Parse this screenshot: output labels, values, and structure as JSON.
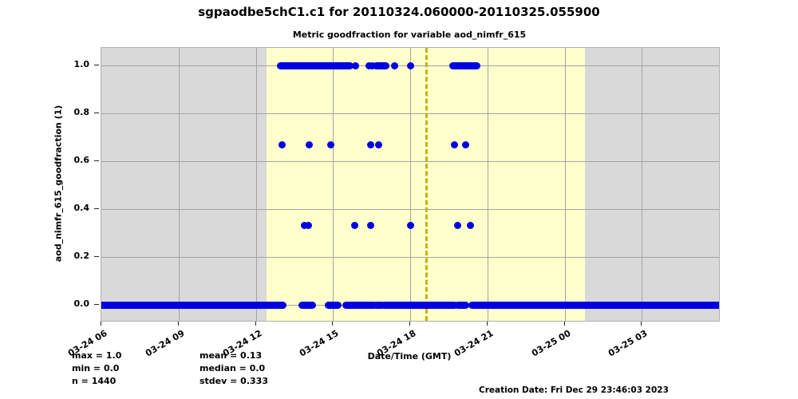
{
  "title": "sgpaodbe5chC1.c1 for 20110324.060000-20110325.055900",
  "subtitle": "Metric goodfraction for variable aod_nimfr_615",
  "x_axis": {
    "label": "Date/Time (GMT)",
    "ticks": [
      {
        "label": "03-24 06",
        "hour": 0
      },
      {
        "label": "03-24 09",
        "hour": 3
      },
      {
        "label": "03-24 12",
        "hour": 6
      },
      {
        "label": "03-24 15",
        "hour": 9
      },
      {
        "label": "03-24 18",
        "hour": 12
      },
      {
        "label": "03-24 21",
        "hour": 15
      },
      {
        "label": "03-25 00",
        "hour": 18
      },
      {
        "label": "03-25 03",
        "hour": 21
      }
    ]
  },
  "y_axis": {
    "label": "aod_nimfr_615_goodfraction (1)",
    "ticks": [
      {
        "label": "1.0",
        "value": 1.0
      },
      {
        "label": "0.8",
        "value": 0.8
      },
      {
        "label": "0.6",
        "value": 0.6
      },
      {
        "label": "0.4",
        "value": 0.4
      },
      {
        "label": "0.2",
        "value": 0.2
      },
      {
        "label": "0.0",
        "value": 0.0
      }
    ]
  },
  "stats": {
    "max": "max = 1.0",
    "min": "min = 0.0",
    "n": "n = 1440",
    "mean": "mean = 0.13",
    "median": "median = 0.0",
    "stdev": "stdev = 0.333"
  },
  "footer": "Creation Date: Fri Dec 29 23:46:03 2023",
  "colors": {
    "plot_background": "#d9d9d9",
    "daylight_band": "#ffffcc",
    "gridline": "#a3a3a3",
    "marker": "#0000e0",
    "noon_line": "#c3b400",
    "plot_border": "#b0b0b0"
  },
  "chart_data": {
    "type": "scatter",
    "title": "Metric goodfraction for variable aod_nimfr_615",
    "xlabel": "Date/Time (GMT)",
    "ylabel": "aod_nimfr_615_goodfraction (1)",
    "x_unit": "hours since 2011-03-24 06:00 GMT",
    "xlim": [
      0,
      24
    ],
    "ylim": [
      -0.07,
      1.07
    ],
    "grid": true,
    "legend": false,
    "daylight_band_hours": [
      6.42,
      18.79
    ],
    "solar_noon_line_hour": 12.59,
    "series": [
      {
        "value": 1.0,
        "segments": [
          [
            6.95,
            9.67
          ],
          [
            10.67,
            11.07
          ],
          [
            13.67,
            14.6
          ]
        ],
        "points": [
          9.89,
          10.39,
          10.54,
          11.38,
          12.03
        ]
      },
      {
        "value": 0.6667,
        "segments": [],
        "points": [
          7.01,
          8.09,
          8.9,
          10.45,
          10.76,
          13.71,
          14.17
        ]
      },
      {
        "value": 0.3333,
        "segments": [],
        "points": [
          7.88,
          8.06,
          9.86,
          10.48,
          12.0,
          13.86,
          14.33
        ]
      },
      {
        "value": 0.0,
        "segments": [
          [
            0.0,
            7.04
          ],
          [
            7.81,
            8.19
          ],
          [
            8.81,
            9.18
          ],
          [
            9.49,
            10.36
          ],
          [
            10.42,
            10.6
          ],
          [
            10.67,
            10.91
          ],
          [
            10.98,
            13.71
          ],
          [
            13.86,
            14.17
          ],
          [
            14.39,
            24.0
          ]
        ],
        "points": []
      }
    ]
  }
}
